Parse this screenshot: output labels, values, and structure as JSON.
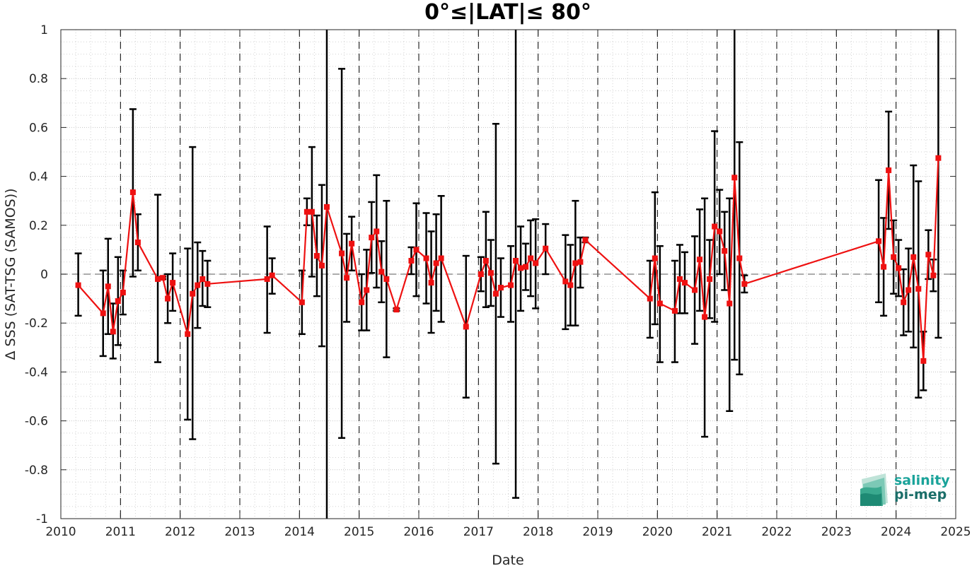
{
  "chart_data": {
    "type": "line",
    "title": "0°≤|LAT|≤ 80°",
    "xlabel": "Date",
    "ylabel": "Δ SSS (SAT-TSG (SAMOS))",
    "xlim": [
      2010,
      2025
    ],
    "ylim": [
      -1,
      1
    ],
    "x_ticks": [
      "2010",
      "2011",
      "2012",
      "2013",
      "2014",
      "2015",
      "2016",
      "2017",
      "2018",
      "2019",
      "2020",
      "2021",
      "2022",
      "2023",
      "2024",
      "2025"
    ],
    "y_ticks": [
      "-1",
      "-0.8",
      "-0.6",
      "-0.4",
      "-0.2",
      "0",
      "0.2",
      "0.4",
      "0.6",
      "0.8",
      "1"
    ],
    "grid": true,
    "reference_line_y": 0,
    "year_boundaries_dashed": [
      2011,
      2012,
      2013,
      2014,
      2015,
      2016,
      2017,
      2018,
      2019,
      2020,
      2021,
      2022,
      2023,
      2024
    ],
    "series": [
      {
        "color": "#ee1111",
        "errorbar_color": "#000000",
        "points": [
          {
            "x": "2010-04",
            "y": -0.045,
            "lo": -0.17,
            "hi": 0.085
          },
          {
            "x": "2010-09",
            "y": -0.16,
            "lo": -0.335,
            "hi": 0.015
          },
          {
            "x": "2010-10",
            "y": -0.05,
            "lo": -0.245,
            "hi": 0.145
          },
          {
            "x": "2010-11",
            "y": -0.235,
            "lo": -0.345,
            "hi": -0.12
          },
          {
            "x": "2010-12",
            "y": -0.11,
            "lo": -0.29,
            "hi": 0.07
          },
          {
            "x": "2011-01",
            "y": -0.075,
            "lo": -0.165,
            "hi": 0.015
          },
          {
            "x": "2011-03",
            "y": 0.335,
            "lo": -0.01,
            "hi": 0.675
          },
          {
            "x": "2011-04",
            "y": 0.13,
            "lo": 0.015,
            "hi": 0.245
          },
          {
            "x": "2011-08",
            "y": -0.02,
            "lo": -0.36,
            "hi": 0.325
          },
          {
            "x": "2011-09",
            "y": -0.015,
            "lo": -0.02,
            "hi": -0.01
          },
          {
            "x": "2011-10",
            "y": -0.1,
            "lo": -0.2,
            "hi": 0.0
          },
          {
            "x": "2011-11",
            "y": -0.035,
            "lo": -0.15,
            "hi": 0.085
          },
          {
            "x": "2012-02",
            "y": -0.245,
            "lo": -0.595,
            "hi": 0.105
          },
          {
            "x": "2012-03",
            "y": -0.08,
            "lo": -0.675,
            "hi": 0.52
          },
          {
            "x": "2012-04",
            "y": -0.045,
            "lo": -0.22,
            "hi": 0.13
          },
          {
            "x": "2012-05",
            "y": -0.02,
            "lo": -0.13,
            "hi": 0.095
          },
          {
            "x": "2012-06",
            "y": -0.04,
            "lo": -0.135,
            "hi": 0.055
          },
          {
            "x": "2013-06",
            "y": -0.02,
            "lo": -0.24,
            "hi": 0.195
          },
          {
            "x": "2013-07",
            "y": -0.005,
            "lo": -0.08,
            "hi": 0.065
          },
          {
            "x": "2014-01",
            "y": -0.115,
            "lo": -0.245,
            "hi": 0.015
          },
          {
            "x": "2014-02",
            "y": 0.255,
            "lo": 0.2,
            "hi": 0.31
          },
          {
            "x": "2014-03",
            "y": 0.255,
            "lo": -0.01,
            "hi": 0.52
          },
          {
            "x": "2014-04",
            "y": 0.075,
            "lo": -0.09,
            "hi": 0.24
          },
          {
            "x": "2014-05",
            "y": 0.035,
            "lo": -0.295,
            "hi": 0.365
          },
          {
            "x": "2014-06",
            "y": 0.275,
            "lo": -1.0,
            "hi": 1.0
          },
          {
            "x": "2014-09",
            "y": 0.085,
            "lo": -0.67,
            "hi": 0.84
          },
          {
            "x": "2014-10",
            "y": -0.015,
            "lo": -0.195,
            "hi": 0.165
          },
          {
            "x": "2014-11",
            "y": 0.125,
            "lo": 0.015,
            "hi": 0.235
          },
          {
            "x": "2015-01",
            "y": -0.115,
            "lo": -0.23,
            "hi": 0.0
          },
          {
            "x": "2015-02",
            "y": -0.065,
            "lo": -0.23,
            "hi": 0.1
          },
          {
            "x": "2015-03",
            "y": 0.15,
            "lo": 0.005,
            "hi": 0.295
          },
          {
            "x": "2015-04",
            "y": 0.175,
            "lo": -0.055,
            "hi": 0.405
          },
          {
            "x": "2015-05",
            "y": 0.01,
            "lo": -0.115,
            "hi": 0.135
          },
          {
            "x": "2015-06",
            "y": -0.02,
            "lo": -0.34,
            "hi": 0.3
          },
          {
            "x": "2015-08",
            "y": -0.145,
            "lo": -0.15,
            "hi": -0.14
          },
          {
            "x": "2015-11",
            "y": 0.055,
            "lo": 0.0,
            "hi": 0.11
          },
          {
            "x": "2015-12",
            "y": 0.1,
            "lo": -0.09,
            "hi": 0.29
          },
          {
            "x": "2016-02",
            "y": 0.065,
            "lo": -0.12,
            "hi": 0.25
          },
          {
            "x": "2016-03",
            "y": -0.035,
            "lo": -0.24,
            "hi": 0.175
          },
          {
            "x": "2016-04",
            "y": 0.045,
            "lo": -0.15,
            "hi": 0.245
          },
          {
            "x": "2016-05",
            "y": 0.065,
            "lo": -0.195,
            "hi": 0.32
          },
          {
            "x": "2016-10",
            "y": -0.215,
            "lo": -0.505,
            "hi": 0.075
          },
          {
            "x": "2017-01",
            "y": 0.0,
            "lo": -0.07,
            "hi": 0.07
          },
          {
            "x": "2017-02",
            "y": 0.055,
            "lo": -0.135,
            "hi": 0.255
          },
          {
            "x": "2017-03",
            "y": 0.005,
            "lo": -0.13,
            "hi": 0.14
          },
          {
            "x": "2017-04",
            "y": -0.08,
            "lo": -0.775,
            "hi": 0.615
          },
          {
            "x": "2017-05",
            "y": -0.055,
            "lo": -0.175,
            "hi": 0.065
          },
          {
            "x": "2017-07",
            "y": -0.045,
            "lo": -0.195,
            "hi": 0.115
          },
          {
            "x": "2017-08",
            "y": 0.055,
            "lo": -0.915,
            "hi": 1.0
          },
          {
            "x": "2017-09",
            "y": 0.025,
            "lo": -0.15,
            "hi": 0.195
          },
          {
            "x": "2017-10",
            "y": 0.03,
            "lo": -0.065,
            "hi": 0.125
          },
          {
            "x": "2017-11",
            "y": 0.065,
            "lo": -0.09,
            "hi": 0.22
          },
          {
            "x": "2017-12",
            "y": 0.045,
            "lo": -0.14,
            "hi": 0.225
          },
          {
            "x": "2018-02",
            "y": 0.105,
            "lo": 0.0,
            "hi": 0.205
          },
          {
            "x": "2018-06",
            "y": -0.03,
            "lo": -0.225,
            "hi": 0.16
          },
          {
            "x": "2018-07",
            "y": -0.045,
            "lo": -0.21,
            "hi": 0.12
          },
          {
            "x": "2018-08",
            "y": 0.045,
            "lo": -0.21,
            "hi": 0.3
          },
          {
            "x": "2018-09",
            "y": 0.05,
            "lo": -0.055,
            "hi": 0.15
          },
          {
            "x": "2018-10",
            "y": 0.14,
            "lo": 0.13,
            "hi": 0.15
          },
          {
            "x": "2019-11",
            "y": -0.1,
            "lo": -0.26,
            "hi": 0.055
          },
          {
            "x": "2019-12",
            "y": 0.065,
            "lo": -0.205,
            "hi": 0.335
          },
          {
            "x": "2020-01",
            "y": -0.12,
            "lo": -0.36,
            "hi": 0.115
          },
          {
            "x": "2020-04",
            "y": -0.15,
            "lo": -0.36,
            "hi": 0.055
          },
          {
            "x": "2020-05",
            "y": -0.02,
            "lo": -0.16,
            "hi": 0.12
          },
          {
            "x": "2020-06",
            "y": -0.035,
            "lo": -0.16,
            "hi": 0.09
          },
          {
            "x": "2020-08",
            "y": -0.065,
            "lo": -0.285,
            "hi": 0.155
          },
          {
            "x": "2020-09",
            "y": 0.06,
            "lo": -0.15,
            "hi": 0.265
          },
          {
            "x": "2020-10",
            "y": -0.175,
            "lo": -0.665,
            "hi": 0.31
          },
          {
            "x": "2020-11",
            "y": -0.02,
            "lo": -0.18,
            "hi": 0.14
          },
          {
            "x": "2020-12",
            "y": 0.195,
            "lo": -0.195,
            "hi": 0.585
          },
          {
            "x": "2021-01",
            "y": 0.175,
            "lo": 0.0,
            "hi": 0.345
          },
          {
            "x": "2021-02",
            "y": 0.095,
            "lo": -0.065,
            "hi": 0.255
          },
          {
            "x": "2021-03",
            "y": -0.12,
            "lo": -0.56,
            "hi": 0.31
          },
          {
            "x": "2021-04",
            "y": 0.395,
            "lo": -0.35,
            "hi": 1.0
          },
          {
            "x": "2021-05",
            "y": 0.065,
            "lo": -0.41,
            "hi": 0.54
          },
          {
            "x": "2021-06",
            "y": -0.04,
            "lo": -0.075,
            "hi": -0.005
          },
          {
            "x": "2023-09",
            "y": 0.135,
            "lo": -0.115,
            "hi": 0.385
          },
          {
            "x": "2023-10",
            "y": 0.03,
            "lo": -0.17,
            "hi": 0.23
          },
          {
            "x": "2023-11",
            "y": 0.425,
            "lo": 0.185,
            "hi": 0.665
          },
          {
            "x": "2023-12",
            "y": 0.07,
            "lo": -0.08,
            "hi": 0.22
          },
          {
            "x": "2024-01",
            "y": 0.025,
            "lo": -0.09,
            "hi": 0.14
          },
          {
            "x": "2024-02",
            "y": -0.115,
            "lo": -0.25,
            "hi": 0.02
          },
          {
            "x": "2024-03",
            "y": -0.065,
            "lo": -0.235,
            "hi": 0.105
          },
          {
            "x": "2024-04",
            "y": 0.07,
            "lo": -0.3,
            "hi": 0.445
          },
          {
            "x": "2024-05",
            "y": -0.06,
            "lo": -0.505,
            "hi": 0.38
          },
          {
            "x": "2024-06",
            "y": -0.355,
            "lo": -0.475,
            "hi": -0.235
          },
          {
            "x": "2024-07",
            "y": 0.08,
            "lo": -0.02,
            "hi": 0.18
          },
          {
            "x": "2024-08",
            "y": -0.005,
            "lo": -0.07,
            "hi": 0.06
          },
          {
            "x": "2024-09",
            "y": 0.475,
            "lo": -0.26,
            "hi": 1.0
          }
        ]
      }
    ]
  },
  "logo": {
    "line1": "salinity",
    "line2": "pi-mep",
    "color1": "#1aa39a",
    "color2": "#1b6e69"
  }
}
